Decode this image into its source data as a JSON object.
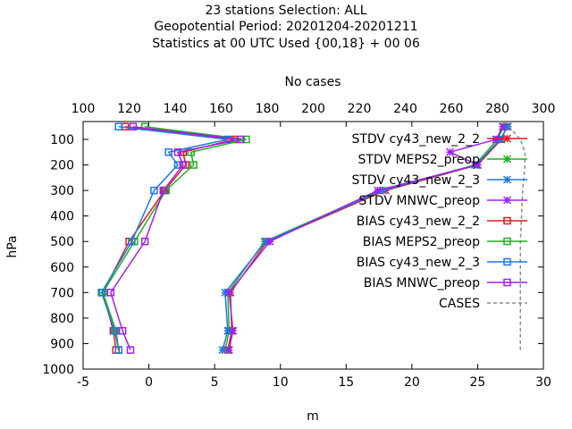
{
  "colors": {
    "stdv_cy43_new_2_2": "#e41a1c",
    "stdv_meps2_preop": "#1db31d",
    "stdv_cy43_new_2_3": "#1f78e6",
    "stdv_mnwc_preop": "#a020f0",
    "bias_cy43_new_2_2": "#e41a1c",
    "bias_meps2_preop": "#1db31d",
    "bias_cy43_new_2_3": "#1f78e6",
    "bias_mnwc_preop": "#a020f0",
    "cases": "#8c8c8c"
  },
  "chart_data": {
    "type": "line",
    "title": [
      "23 stations Selection: ALL",
      "Geopotential  Period: 20201204-20201211",
      "Statistics at 00 UTC  Used {00,18} + 00 06"
    ],
    "xlabel": "m",
    "x2label": "No cases",
    "ylabel": "hPa",
    "xlim": [
      -5,
      30
    ],
    "x2lim": [
      100,
      300
    ],
    "ylim": [
      1000,
      30
    ],
    "xticks": [
      "-5",
      "0",
      "5",
      "10",
      "15",
      "20",
      "25",
      "30"
    ],
    "x2ticks": [
      "100",
      "120",
      "140",
      "160",
      "180",
      "200",
      "220",
      "240",
      "260",
      "280",
      "300"
    ],
    "yticks": [
      "100",
      "200",
      "300",
      "400",
      "500",
      "600",
      "700",
      "800",
      "900",
      "1000"
    ],
    "legend_position": "top-right",
    "series": [
      {
        "name": "STDV cy43_new_2_2",
        "marker": "star",
        "points": [
          [
            27.2,
            50
          ],
          [
            26.8,
            100
          ],
          [
            25,
            200
          ],
          [
            18,
            300
          ],
          [
            9,
            500
          ],
          [
            6.2,
            700
          ],
          [
            6.3,
            850
          ],
          [
            6,
            925
          ]
        ]
      },
      {
        "name": "STDV MEPS2_preop",
        "marker": "star",
        "points": [
          [
            27,
            50
          ],
          [
            26.5,
            100
          ],
          [
            24.8,
            200
          ],
          [
            17.6,
            300
          ],
          [
            8.8,
            500
          ],
          [
            6,
            700
          ],
          [
            6.1,
            850
          ],
          [
            5.8,
            925
          ]
        ]
      },
      {
        "name": "STDV cy43_new_2_3",
        "marker": "star",
        "points": [
          [
            27.3,
            50
          ],
          [
            26.7,
            100
          ],
          [
            24.9,
            200
          ],
          [
            17.8,
            300
          ],
          [
            8.9,
            500
          ],
          [
            5.8,
            700
          ],
          [
            6,
            850
          ],
          [
            5.6,
            925
          ]
        ]
      },
      {
        "name": "STDV MNWC_preop",
        "marker": "star",
        "points": [
          [
            26.9,
            50
          ],
          [
            26.4,
            100
          ],
          [
            22.9,
            150
          ],
          [
            25,
            200
          ],
          [
            17.4,
            300
          ],
          [
            9.2,
            500
          ],
          [
            6.1,
            700
          ],
          [
            6.4,
            850
          ],
          [
            6.1,
            925
          ]
        ]
      },
      {
        "name": "BIAS cy43_new_2_2",
        "marker": "square",
        "points": [
          [
            -1.8,
            50
          ],
          [
            6.5,
            100
          ],
          [
            2.6,
            150
          ],
          [
            2.8,
            200
          ],
          [
            1.2,
            300
          ],
          [
            -1.5,
            500
          ],
          [
            -3.5,
            700
          ],
          [
            -2.7,
            850
          ],
          [
            -2.5,
            925
          ]
        ]
      },
      {
        "name": "BIAS MEPS2_preop",
        "marker": "square",
        "points": [
          [
            -0.3,
            50
          ],
          [
            7.4,
            100
          ],
          [
            3.2,
            150
          ],
          [
            3.4,
            200
          ],
          [
            1.3,
            300
          ],
          [
            -1.1,
            500
          ],
          [
            -3.5,
            700
          ],
          [
            -2.5,
            850
          ],
          [
            -2.3,
            925
          ]
        ]
      },
      {
        "name": "BIAS cy43_new_2_3",
        "marker": "square",
        "points": [
          [
            -2.3,
            50
          ],
          [
            6,
            100
          ],
          [
            1.5,
            150
          ],
          [
            2.2,
            200
          ],
          [
            0.4,
            300
          ],
          [
            -1.3,
            500
          ],
          [
            -3.6,
            700
          ],
          [
            -2.6,
            850
          ],
          [
            -2.3,
            925
          ]
        ]
      },
      {
        "name": "BIAS MNWC_preop",
        "marker": "square",
        "points": [
          [
            -1.2,
            50
          ],
          [
            7,
            100
          ],
          [
            2.2,
            150
          ],
          [
            2.6,
            200
          ],
          [
            1.1,
            300
          ],
          [
            -0.3,
            500
          ],
          [
            -2.9,
            700
          ],
          [
            -2,
            850
          ],
          [
            -1.4,
            925
          ]
        ]
      },
      {
        "name": "CASES",
        "marker": "none",
        "axis": "x2",
        "points": [
          [
            285,
            50
          ],
          [
            290,
            100
          ],
          [
            292,
            150
          ],
          [
            292,
            200
          ],
          [
            291,
            300
          ],
          [
            290,
            500
          ],
          [
            290,
            700
          ],
          [
            290,
            850
          ],
          [
            290,
            925
          ]
        ]
      }
    ]
  }
}
